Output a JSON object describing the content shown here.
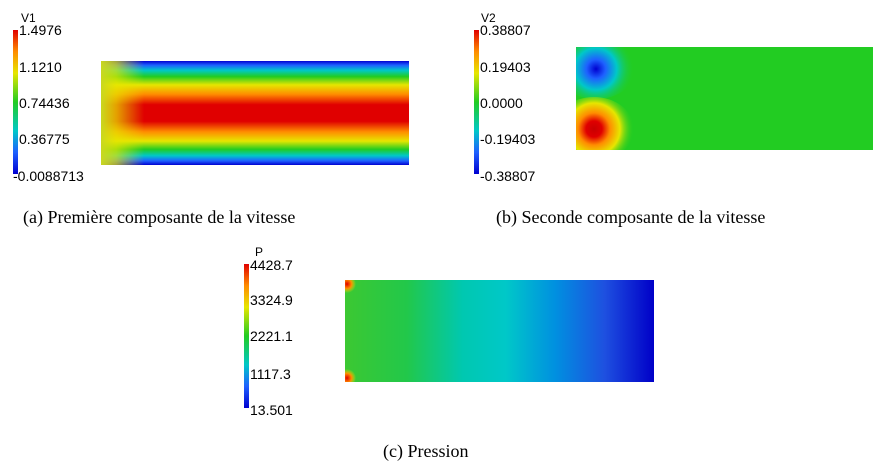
{
  "panels": [
    {
      "id": "a",
      "variable": "V1",
      "ticks": [
        "1.4976",
        "1.1210",
        "0.74436",
        "0.36775",
        "-0.0088713"
      ],
      "caption": "(a)  Première composante de la vitesse"
    },
    {
      "id": "b",
      "variable": "V2",
      "ticks": [
        "0.38807",
        "0.19403",
        "0.0000",
        "-0.19403",
        "-0.38807"
      ],
      "caption": "(b)  Seconde composante de la vitesse"
    },
    {
      "id": "c",
      "variable": "P",
      "ticks": [
        "4428.7",
        "3324.9",
        "2221.1",
        "1117.3",
        "13.501"
      ],
      "caption": "(c)  Pression"
    }
  ],
  "colors": {
    "jet_red": "#e00000",
    "jet_yellow": "#e6e600",
    "jet_green": "#22cc22",
    "jet_cyan": "#00c8c8",
    "jet_blue": "#0000d0"
  }
}
